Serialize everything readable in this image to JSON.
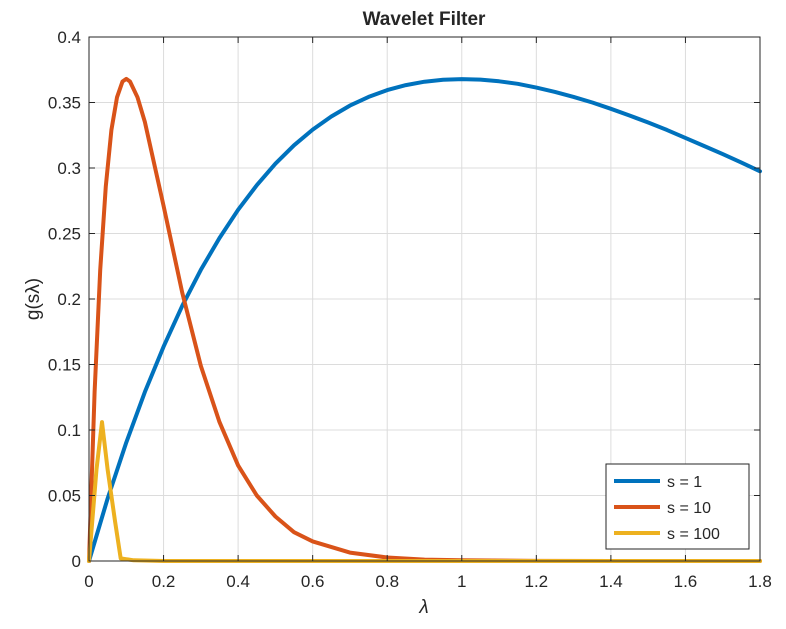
{
  "chart_data": {
    "type": "line",
    "title": "Wavelet Filter",
    "xlabel": "λ",
    "ylabel": "g(sλ)",
    "xlim": [
      0,
      1.8
    ],
    "ylim": [
      0,
      0.4
    ],
    "xticks": [
      "0",
      "0.2",
      "0.4",
      "0.6",
      "0.8",
      "1",
      "1.2",
      "1.4",
      "1.6",
      "1.8"
    ],
    "yticks": [
      "0",
      "0.05",
      "0.1",
      "0.15",
      "0.2",
      "0.25",
      "0.3",
      "0.35",
      "0.4"
    ],
    "grid": true,
    "legend_position": "bottom-right",
    "series": [
      {
        "name": "s = 1",
        "color": "#0072BD",
        "x": [
          0,
          0.05,
          0.1,
          0.15,
          0.2,
          0.25,
          0.3,
          0.35,
          0.4,
          0.45,
          0.5,
          0.55,
          0.6,
          0.65,
          0.7,
          0.75,
          0.8,
          0.85,
          0.9,
          0.95,
          1.0,
          1.05,
          1.1,
          1.15,
          1.2,
          1.25,
          1.3,
          1.35,
          1.4,
          1.45,
          1.5,
          1.55,
          1.6,
          1.65,
          1.7,
          1.75,
          1.8
        ],
        "y": [
          0,
          0.0476,
          0.0905,
          0.1291,
          0.1637,
          0.1947,
          0.2222,
          0.2466,
          0.2681,
          0.2869,
          0.3033,
          0.3173,
          0.3293,
          0.3393,
          0.3476,
          0.3543,
          0.3595,
          0.3633,
          0.3659,
          0.3674,
          0.3679,
          0.3675,
          0.3662,
          0.3643,
          0.3614,
          0.3581,
          0.3543,
          0.35,
          0.3452,
          0.3401,
          0.3347,
          0.3291,
          0.323,
          0.3168,
          0.3106,
          0.3041,
          0.2975
        ]
      },
      {
        "name": "s = 10",
        "color": "#D95319",
        "x": [
          0,
          0.015,
          0.03,
          0.045,
          0.06,
          0.075,
          0.09,
          0.1,
          0.11,
          0.13,
          0.15,
          0.2,
          0.25,
          0.3,
          0.35,
          0.4,
          0.45,
          0.5,
          0.55,
          0.6,
          0.7,
          0.8,
          0.9,
          1.0,
          1.2,
          1.4,
          1.6,
          1.8
        ],
        "y": [
          0,
          0.129,
          0.222,
          0.286,
          0.329,
          0.354,
          0.366,
          0.368,
          0.366,
          0.354,
          0.335,
          0.271,
          0.205,
          0.149,
          0.106,
          0.073,
          0.05,
          0.034,
          0.022,
          0.015,
          0.0064,
          0.0027,
          0.0011,
          0.0005,
          0.0001,
          0,
          0,
          0
        ]
      },
      {
        "name": "s = 100",
        "color": "#EDB120",
        "x": [
          0,
          0.02,
          0.035,
          0.05,
          0.07,
          0.085,
          0.12,
          0.2,
          0.5,
          1.0,
          1.8
        ],
        "y": [
          0,
          0.07,
          0.106,
          0.07,
          0.03,
          0.002,
          0.0005,
          0,
          0,
          0,
          0
        ]
      }
    ]
  }
}
